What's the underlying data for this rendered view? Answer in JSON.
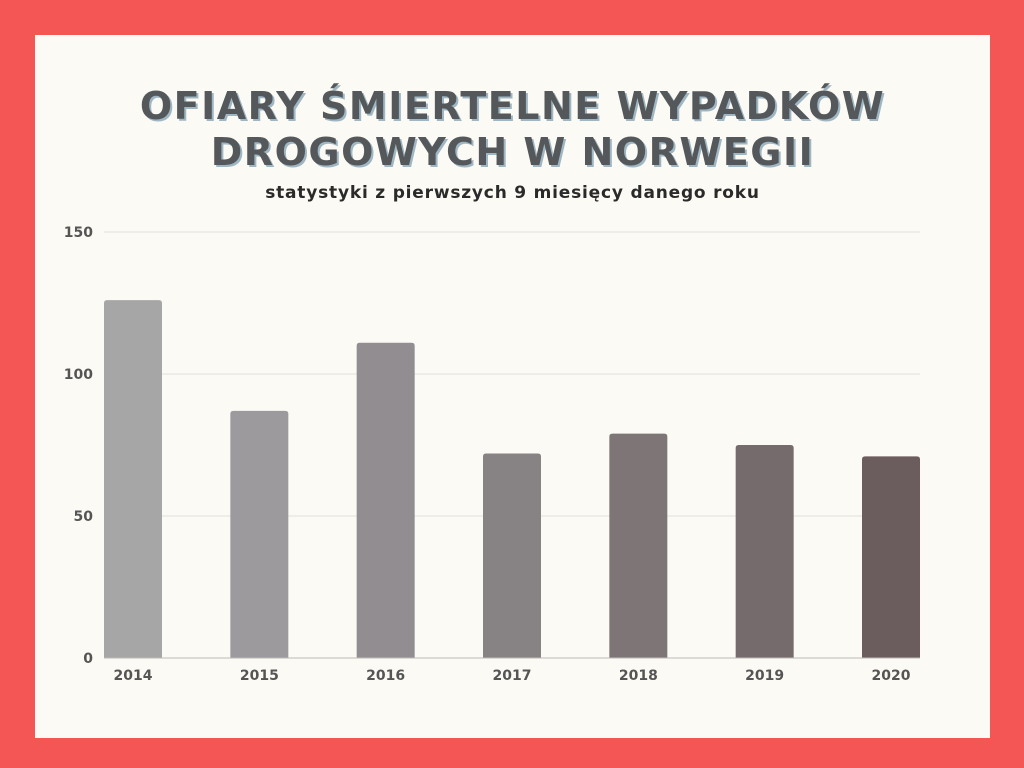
{
  "title_line1": "OFIARY ŚMIERTELNE WYPADKÓW",
  "title_line2": "DROGOWYCH W NORWEGII",
  "subtitle": "statystyki z pierwszych 9 miesięcy danego roku",
  "colors": {
    "page_frame": "#f45656",
    "card": "#fcfaf4",
    "title": "#54585a",
    "title_shadow": "#9fb7c4",
    "grid": "#e2e0db"
  },
  "chart_data": {
    "type": "bar",
    "title": "OFIARY ŚMIERTELNE WYPADKÓW DROGOWYCH W NORWEGII",
    "subtitle": "statystyki z pierwszych 9 miesięcy danego roku",
    "categories": [
      "2014",
      "2015",
      "2016",
      "2017",
      "2018",
      "2019",
      "2020"
    ],
    "values": [
      126,
      87,
      111,
      72,
      79,
      75,
      71
    ],
    "bar_colors": [
      "#a7a6a7",
      "#9c9a9c",
      "#918d90",
      "#878284",
      "#7e7577",
      "#756a6c",
      "#6b5d5e"
    ],
    "xlabel": "",
    "ylabel": "",
    "ylim": [
      0,
      150
    ],
    "yticks": [
      0,
      50,
      100,
      150
    ],
    "grid": true,
    "legend": "none"
  }
}
